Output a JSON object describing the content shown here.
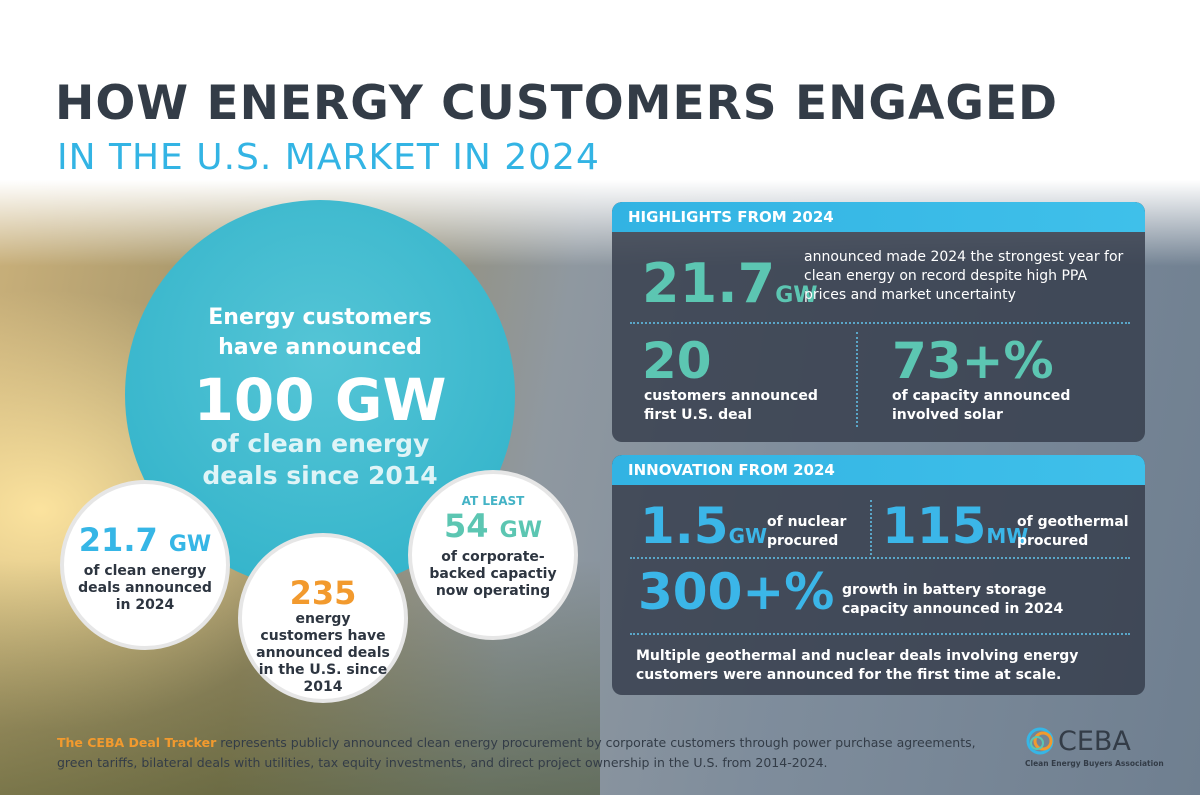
{
  "header": {
    "title": "HOW ENERGY CUSTOMERS ENGAGED",
    "subtitle": "IN THE U.S. MARKET IN 2024"
  },
  "main_circle": {
    "lead": "Energy customers have announced",
    "value": "100 GW",
    "text": "of clean energy deals since 2014"
  },
  "circles": [
    {
      "value": 21.7,
      "unit": "GW",
      "text": "of clean energy deals announced in 2024"
    },
    {
      "value": 235,
      "text": "energy customers have announced deals in the U.S. since 2014"
    },
    {
      "prefix": "AT LEAST",
      "value": 54,
      "unit": "GW",
      "text": "of corporate-backed capactiy now operating"
    }
  ],
  "highlights": {
    "heading": "HIGHLIGHTS FROM 2024",
    "items": [
      {
        "value": 21.7,
        "unit": "GW",
        "text": "announced made 2024 the strongest year for clean energy on record despite high PPA prices and market uncertainty"
      },
      {
        "value": 20,
        "text": "customers announced first U.S. deal"
      },
      {
        "value": "73+%",
        "text": "of capacity announced involved solar"
      }
    ]
  },
  "innovation": {
    "heading": "INNOVATION FROM 2024",
    "items": [
      {
        "value": 1.5,
        "unit": "GW",
        "text": "of nuclear procured"
      },
      {
        "value": 115,
        "unit": "MW",
        "text": "of geothermal procured"
      },
      {
        "value": "300+%",
        "text": "growth in battery storage capacity announced in 2024"
      }
    ],
    "note": "Multiple geothermal and nuclear deals involving energy customers were announced for the first time at scale."
  },
  "footer": {
    "highlight": "The CEBA Deal Tracker",
    "text": "represents publicly announced clean energy procurement by corporate customers through power purchase agreements, green tariffs, bilateral deals with utilities, tax equity investments, and direct project ownership in the U.S. from 2014-2024."
  },
  "logo": {
    "name": "CEBA",
    "tagline": "Clean Energy Buyers Association"
  }
}
